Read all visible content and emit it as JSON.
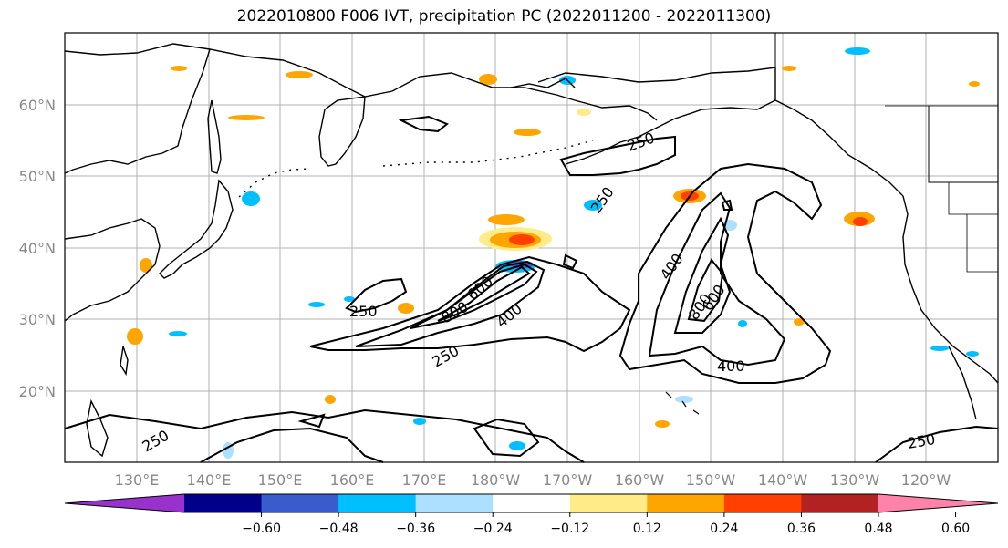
{
  "title": "2022010800 F006 IVT, precipitation PC (2022011200 - 2022011300)",
  "map": {
    "lon_labels": [
      "130°E",
      "140°E",
      "150°E",
      "160°E",
      "170°E",
      "180°W",
      "170°W",
      "160°W",
      "150°W",
      "140°W",
      "130°W",
      "120°W"
    ],
    "lat_labels": [
      "60°N",
      "50°N",
      "40°N",
      "30°N",
      "20°N"
    ],
    "contour_labels": [
      "250",
      "250",
      "400",
      "600",
      "800",
      "250",
      "400",
      "800",
      "600",
      "400",
      "250",
      "250",
      "250"
    ]
  },
  "colorbar": {
    "colors": [
      "#9932CC",
      "#00008B",
      "#3A5BCB",
      "#00BFFF",
      "#ADDFFF",
      "#FFFFFF",
      "#FFEB88",
      "#FFA500",
      "#FF4000",
      "#B22222",
      "#FF82AB"
    ],
    "tick_labels": [
      "−0.60",
      "−0.48",
      "−0.36",
      "−0.24",
      "−0.12",
      "0.12",
      "0.24",
      "0.36",
      "0.48",
      "0.60"
    ]
  },
  "colors": {
    "grid": "#b0b0b0",
    "coast": "#000000",
    "tick_text": "#888888"
  }
}
